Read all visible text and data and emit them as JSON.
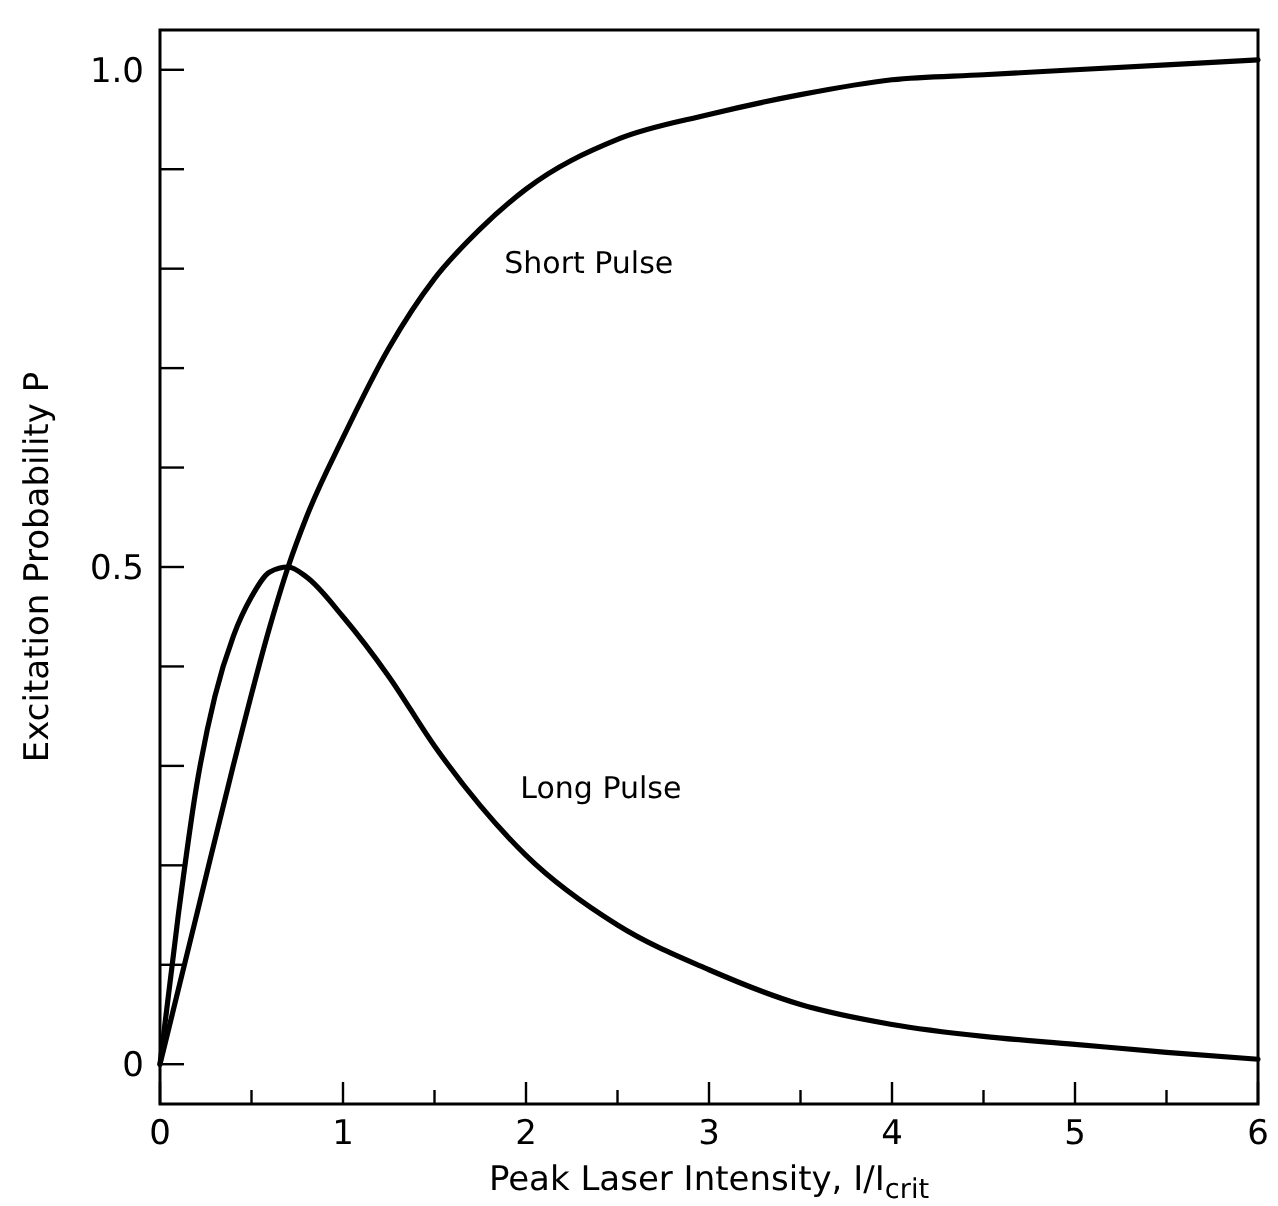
{
  "chart_data": {
    "type": "line",
    "xlabel": "Peak Laser Intensity, I/I$_{crit}$",
    "ylabel": "Excitation Probability P",
    "xlim": [
      0,
      6
    ],
    "ylim": [
      -0.04,
      1.04
    ],
    "xticks": [
      0,
      {
        "value": 0.5,
        "label": null
      },
      1,
      {
        "value": 1.5,
        "label": null
      },
      2,
      {
        "value": 2.5,
        "label": null
      },
      3,
      {
        "value": 3.5,
        "label": null
      },
      4,
      {
        "value": 4.5,
        "label": null
      },
      5,
      {
        "value": 5.5,
        "label": null
      },
      6
    ],
    "yticks": [
      0,
      {
        "value": 0.1,
        "label": null
      },
      {
        "value": 0.2,
        "label": null
      },
      {
        "value": 0.3,
        "label": null
      },
      {
        "value": 0.4,
        "label": null
      },
      0.5,
      {
        "value": 0.6,
        "label": null
      },
      {
        "value": 0.7,
        "label": null
      },
      {
        "value": 0.8,
        "label": null
      },
      {
        "value": 0.9,
        "label": null
      },
      {
        "value": 1,
        "label": "1.0"
      }
    ],
    "marker": "none",
    "line_style": "solid",
    "series": [
      {
        "name": "Short Pulse",
        "color": "#000000",
        "x": [
          0,
          0.2,
          0.4,
          0.6,
          0.7,
          0.8,
          1,
          1.25,
          1.5,
          1.75,
          2,
          2.5,
          3,
          3.5,
          4,
          4.5,
          5,
          5.5,
          6
        ],
        "values": [
          0,
          0.15,
          0.3,
          0.44,
          0.5,
          0.55,
          0.63,
          0.72,
          0.79,
          0.84,
          0.88,
          0.93,
          0.955,
          0.975,
          0.99,
          0.995,
          1.0,
          1.005,
          1.01
        ]
      },
      {
        "name": "Long Pulse",
        "color": "#000000",
        "x": [
          0,
          0.1,
          0.2,
          0.3,
          0.4,
          0.5,
          0.6,
          0.7,
          0.8,
          1,
          1.25,
          1.5,
          1.75,
          2,
          2.5,
          3,
          3.5,
          4,
          4.5,
          5,
          5.5,
          6
        ],
        "values": [
          0,
          0.15,
          0.28,
          0.37,
          0.43,
          0.47,
          0.495,
          0.5,
          0.49,
          0.45,
          0.39,
          0.32,
          0.26,
          0.21,
          0.14,
          0.095,
          0.06,
          0.04,
          0.028,
          0.02,
          0.012,
          0.005
        ]
      }
    ]
  }
}
